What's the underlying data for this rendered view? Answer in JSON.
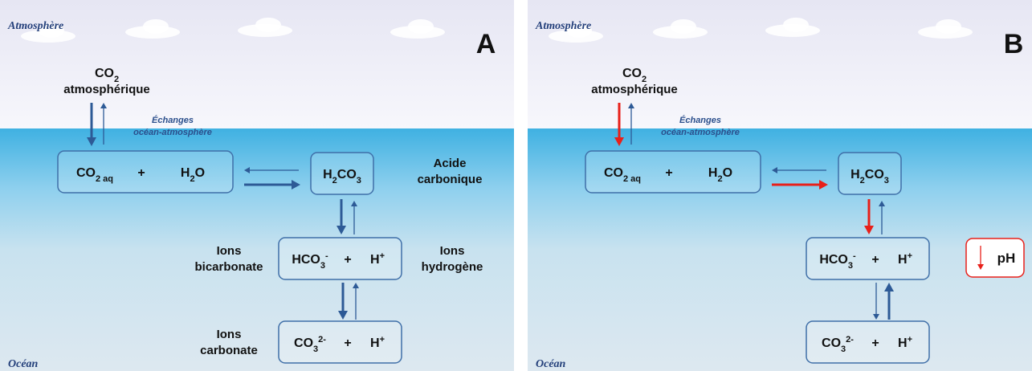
{
  "panels": [
    {
      "letter": "A",
      "atmosphere": "Atmosphère",
      "ocean": "Océan",
      "co2_atm": {
        "formula": [
          {
            "text": "CO"
          },
          {
            "sub": "2"
          }
        ],
        "label": "atmosphérique"
      },
      "exchange": [
        "Échanges",
        "océan-atmosphère"
      ],
      "boxes": [
        {
          "items": [
            [
              {
                "text": "CO"
              },
              {
                "sub": "2 aq"
              }
            ],
            [
              {
                "text": "+"
              }
            ],
            [
              {
                "text": "H"
              },
              {
                "sub": "2"
              },
              {
                "text": "O"
              }
            ]
          ]
        },
        {
          "items": [
            [
              {
                "text": "H"
              },
              {
                "sub": "2"
              },
              {
                "text": "CO"
              },
              {
                "sub": "3"
              }
            ]
          ]
        },
        {
          "items": [
            [
              {
                "text": "HCO"
              },
              {
                "sub": "3"
              },
              {
                "sup": "-"
              }
            ],
            [
              {
                "text": "+"
              }
            ],
            [
              {
                "text": "H"
              },
              {
                "sup": "+"
              }
            ]
          ]
        },
        {
          "items": [
            [
              {
                "text": "CO"
              },
              {
                "sub": "3"
              },
              {
                "sup": "2-"
              }
            ],
            [
              {
                "text": "+"
              }
            ],
            [
              {
                "text": "H"
              },
              {
                "sup": "+"
              }
            ]
          ]
        }
      ],
      "labels": {
        "acid": [
          "Acide",
          "carbonique"
        ],
        "bicarbonate": [
          "Ions",
          "bicarbonate"
        ],
        "hydrogen": [
          "Ions",
          "hydrogène"
        ],
        "carbonate": [
          "Ions",
          "carbonate"
        ]
      }
    },
    {
      "letter": "B",
      "atmosphere": "Atmosphère",
      "ocean": "Océan",
      "co2_atm": {
        "formula": [
          {
            "text": "CO"
          },
          {
            "sub": "2"
          }
        ],
        "label": "atmosphérique"
      },
      "exchange": [
        "Échanges",
        "océan-atmosphère"
      ],
      "boxes": [
        {
          "items": [
            [
              {
                "text": "CO"
              },
              {
                "sub": "2 aq"
              }
            ],
            [
              {
                "text": "+"
              }
            ],
            [
              {
                "text": "H"
              },
              {
                "sub": "2"
              },
              {
                "text": "O"
              }
            ]
          ]
        },
        {
          "items": [
            [
              {
                "text": "H"
              },
              {
                "sub": "2"
              },
              {
                "text": "CO"
              },
              {
                "sub": "3"
              }
            ]
          ]
        },
        {
          "items": [
            [
              {
                "text": "HCO"
              },
              {
                "sub": "3"
              },
              {
                "sup": "-"
              }
            ],
            [
              {
                "text": "+"
              }
            ],
            [
              {
                "text": "H"
              },
              {
                "sup": "+"
              }
            ]
          ]
        },
        {
          "items": [
            [
              {
                "text": "CO"
              },
              {
                "sub": "3"
              },
              {
                "sup": "2-"
              }
            ],
            [
              {
                "text": "+"
              }
            ],
            [
              {
                "text": "H"
              },
              {
                "sup": "+"
              }
            ]
          ]
        }
      ],
      "ph": "pH"
    }
  ]
}
